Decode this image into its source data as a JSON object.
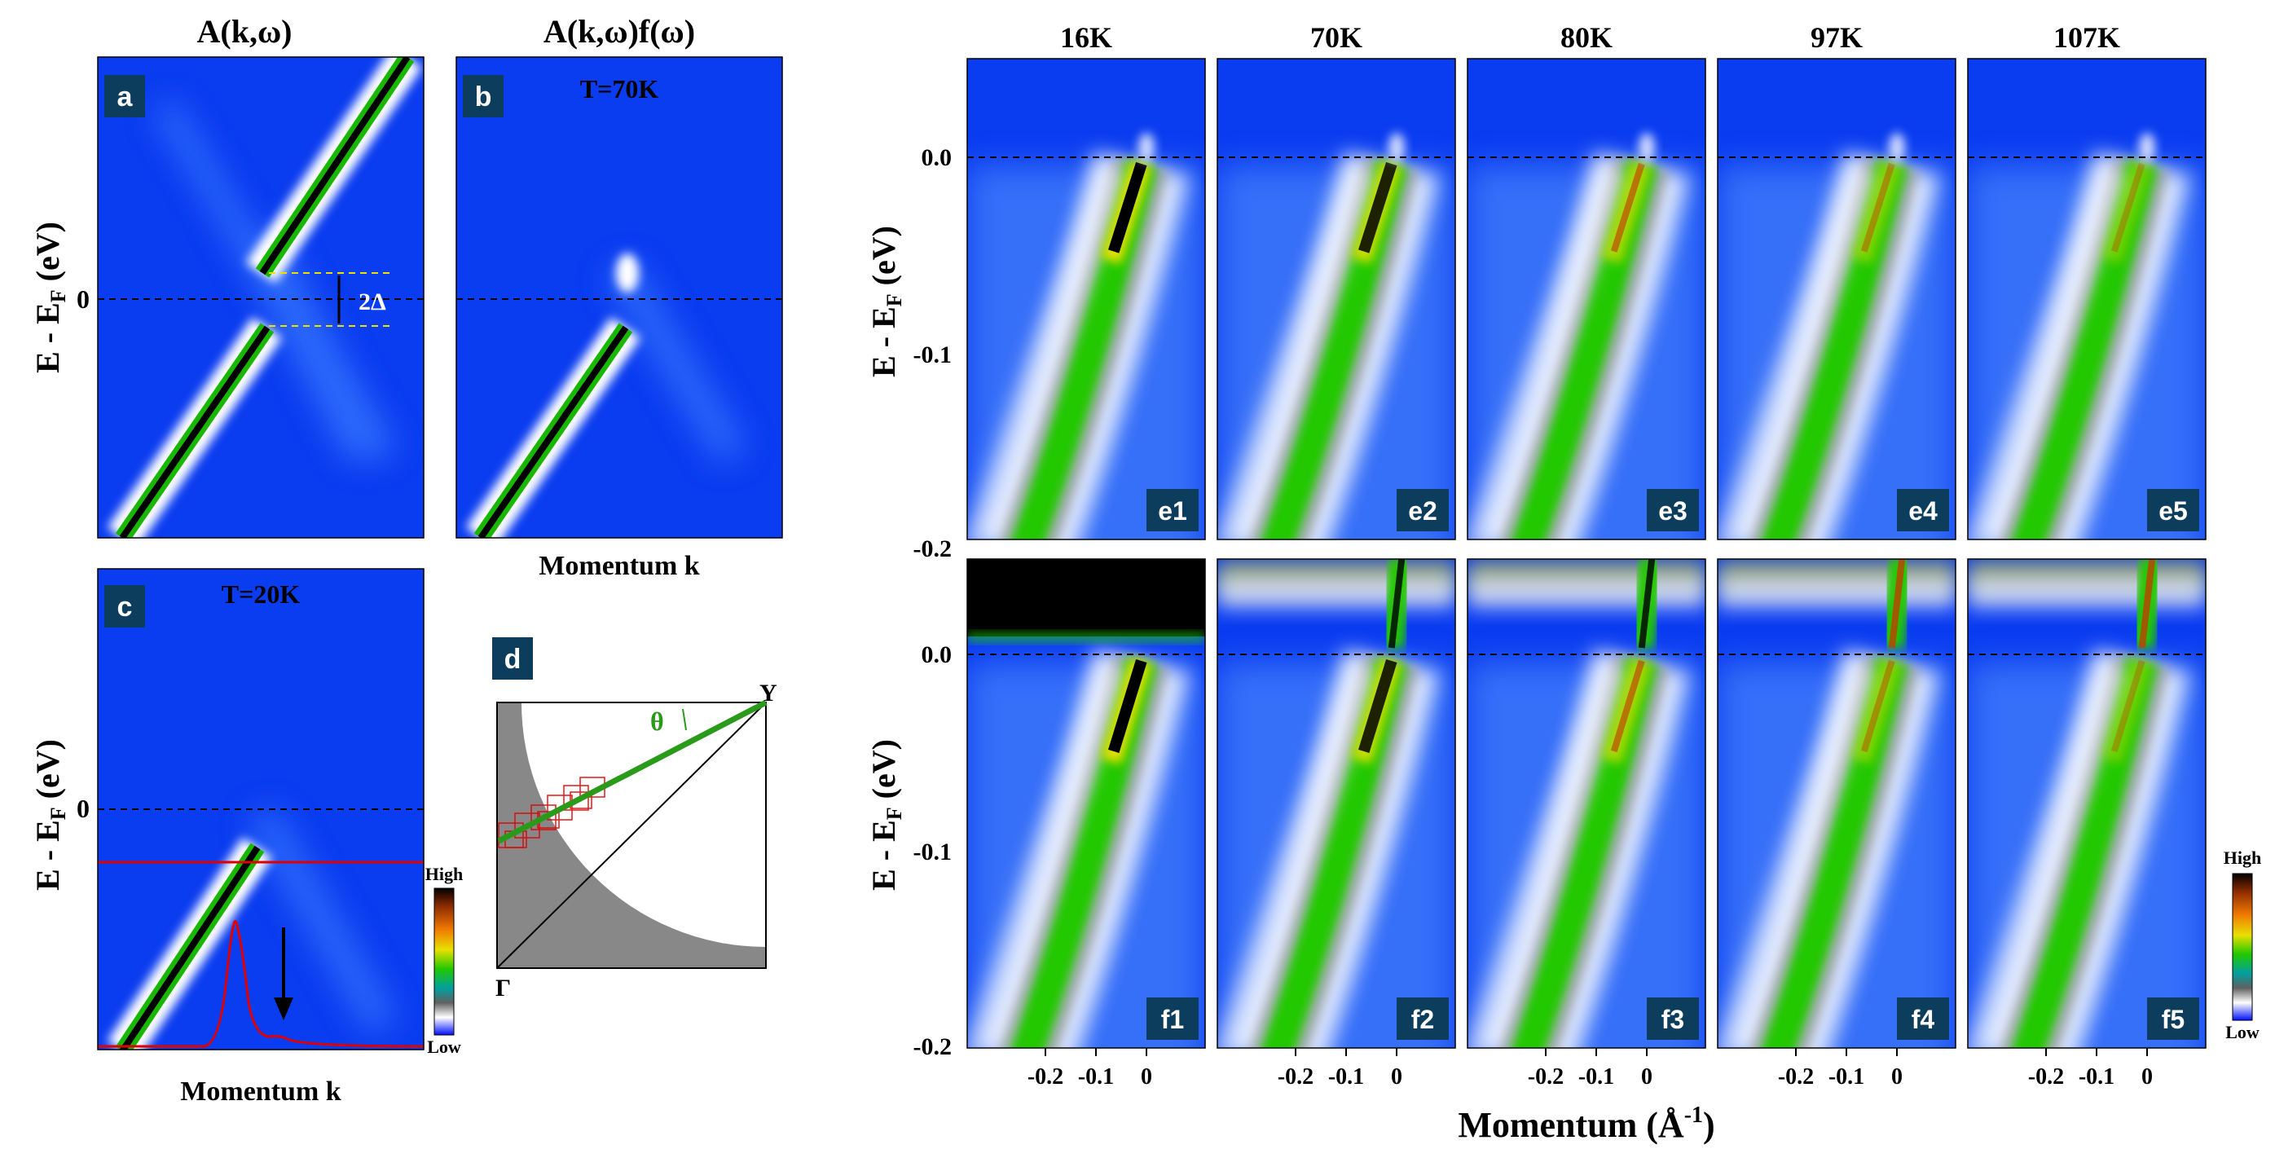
{
  "left_panel": {
    "col_titles": {
      "a": "A(k,ω)",
      "b": "A(k,ω)f(ω)"
    },
    "panel_labels": {
      "a": "a",
      "b": "b",
      "c": "c",
      "d": "d"
    },
    "temps": {
      "b": "T=70K",
      "c": "T=20K"
    },
    "ylabel": "E - E",
    "ylabel_sub": "F",
    "ylabel_unit": " (eV)",
    "zero_tick": "0",
    "gap_label": "2Δ",
    "xlabel": "Momentum k",
    "colorbar": {
      "high": "High",
      "low": "Low"
    },
    "bz": {
      "gamma": "Γ",
      "y": "Y",
      "theta": "θ"
    }
  },
  "right_panel": {
    "temperatures": [
      "16K",
      "70K",
      "80K",
      "97K",
      "107K"
    ],
    "row_e_labels": [
      "e1",
      "e2",
      "e3",
      "e4",
      "e5"
    ],
    "row_f_labels": [
      "f1",
      "f2",
      "f3",
      "f4",
      "f5"
    ],
    "yticks": [
      "0.0",
      "-0.1",
      "-0.2"
    ],
    "ytick_values": [
      0.0,
      -0.1,
      -0.2
    ],
    "xticks": [
      "-0.2",
      "-0.1",
      "0"
    ],
    "xtick_values": [
      -0.2,
      -0.1,
      0
    ],
    "ylabel": "E - E",
    "ylabel_sub": "F",
    "ylabel_unit": " (eV)",
    "xlabel": "Momentum (Å",
    "xlabel_sup": "-1",
    "xlabel_end": ")",
    "colorbar": {
      "high": "High",
      "low": "Low"
    }
  },
  "colors": {
    "background_blue": "#0a3cf0",
    "label_box": "#0d3d5c",
    "cut_line": "#e00000",
    "cut_green": "#2a9a1a"
  }
}
